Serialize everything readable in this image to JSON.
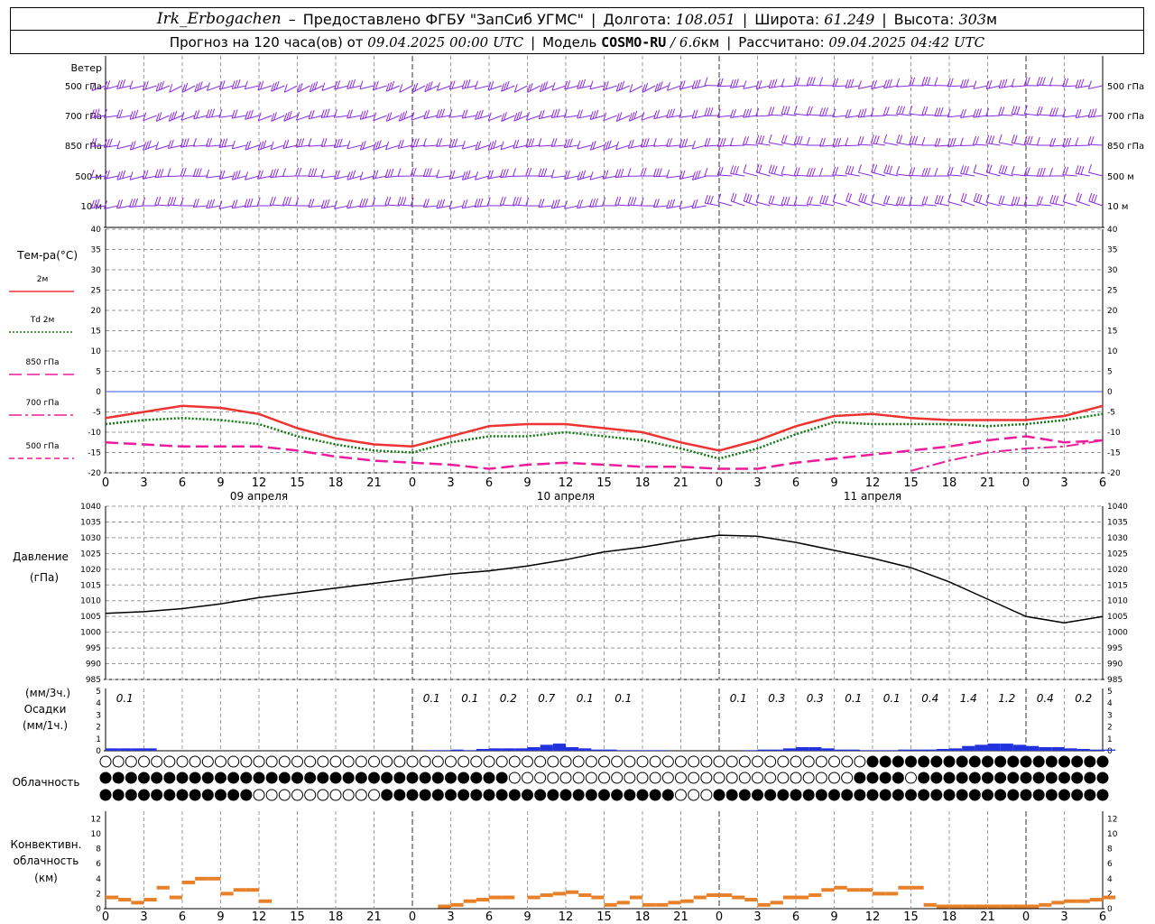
{
  "header": {
    "station": "Irk_Erbogachen",
    "dash": "–",
    "provider": "Предоставлено ФГБУ \"ЗапСиб УГМС\"",
    "lon_label": "Долгота:",
    "lon_value": "108.051",
    "lat_label": "Широта:",
    "lat_value": "61.249",
    "alt_label": "Высота:",
    "alt_value": "303",
    "alt_unit": "м",
    "forecast_label": "Прогноз на 120 часа(ов) от",
    "forecast_from": "09.04.2025 00:00 UTC",
    "model_label": "Модель",
    "model_name": "COSMO-RU",
    "model_res": "/ 6.6",
    "model_unit": "км",
    "calc_label": "Рассчитано:",
    "calc_value": "09.04.2025 04:42 UTC"
  },
  "colors": {
    "wind": "#8a2be2",
    "t2m": "#ee3333",
    "td2m": "#117711",
    "t850": "#ee1c9c",
    "t700": "#ee1c9c",
    "t500": "#ee1c9c",
    "pressure": "#000000",
    "precip": "#2233dd",
    "convective": "#e8802a",
    "zero_line": "#3355dd",
    "grid": "#9a9a9a"
  },
  "wind_panel": {
    "title": "Ветер",
    "levels": [
      "500 гПа",
      "700 гПа",
      "850 гПа",
      "500 м",
      "10 м"
    ]
  },
  "temperature_panel": {
    "title": "Тем-ра(°С)",
    "legend": [
      {
        "key": "t2m",
        "label": "2м",
        "style": "solid"
      },
      {
        "key": "td2m",
        "label": "2м",
        "prefix": "Td",
        "style": "dotted"
      },
      {
        "key": "t850",
        "label": "гПа",
        "prefix": "850",
        "style": "dash"
      },
      {
        "key": "t700",
        "label": "гПа",
        "prefix": "700",
        "style": "dashdot"
      },
      {
        "key": "t500",
        "label": "гПа",
        "prefix": "500",
        "style": "smalldash"
      }
    ],
    "y_ticks": [
      "40",
      "35",
      "30",
      "25",
      "20",
      "15",
      "10",
      "5",
      "0",
      "-5",
      "-10",
      "-15",
      "-20"
    ]
  },
  "x_axis": {
    "hour_labels": [
      "0",
      "3",
      "6",
      "9",
      "12",
      "15",
      "18",
      "21",
      "0",
      "3",
      "6",
      "9",
      "12",
      "15",
      "18",
      "21",
      "0",
      "3",
      "6",
      "9",
      "12",
      "15",
      "18",
      "21",
      "0",
      "3",
      "6"
    ],
    "day_labels": [
      "09 апреля",
      "10 апреля",
      "11 апреля"
    ]
  },
  "pressure_panel": {
    "title": "Давление",
    "unit": "(гПа)",
    "y_ticks": [
      "1040",
      "1035",
      "1030",
      "1025",
      "1020",
      "1015",
      "1010",
      "1005",
      "1000",
      "995",
      "990",
      "985"
    ]
  },
  "precip_panel": {
    "unit3h": "(мм/3ч.)",
    "title": "Осадки",
    "unit1h": "(мм/1ч.)",
    "y_ticks": [
      "5",
      "4",
      "3",
      "2",
      "1",
      "0"
    ],
    "sums": [
      {
        "h": 3,
        "v": "0.1"
      },
      {
        "h": 27,
        "v": "0.1"
      },
      {
        "h": 30,
        "v": "0.1"
      },
      {
        "h": 33,
        "v": "0.2"
      },
      {
        "h": 36,
        "v": "0.7"
      },
      {
        "h": 39,
        "v": "0.1"
      },
      {
        "h": 42,
        "v": "0.1"
      },
      {
        "h": 51,
        "v": "0.1"
      },
      {
        "h": 54,
        "v": "0.3"
      },
      {
        "h": 57,
        "v": "0.3"
      },
      {
        "h": 60,
        "v": "0.1"
      },
      {
        "h": 63,
        "v": "0.1"
      },
      {
        "h": 66,
        "v": "0.4"
      },
      {
        "h": 69,
        "v": "1.4"
      },
      {
        "h": 72,
        "v": "1.2"
      },
      {
        "h": 75,
        "v": "0.4"
      },
      {
        "h": 78,
        "v": "0.2"
      }
    ]
  },
  "cloud_panel": {
    "title": "Облачность"
  },
  "convective_panel": {
    "title1": "Конвективн.",
    "title2": "облачность",
    "unit": "(км)",
    "y_ticks": [
      "12",
      "10",
      "8",
      "6",
      "4",
      "2",
      "0"
    ]
  },
  "chart_data": [
    {
      "type": "line",
      "title": "Тем-ра(°С)",
      "ylim": [
        -20,
        40
      ],
      "x_hours": [
        0,
        3,
        6,
        9,
        12,
        15,
        18,
        21,
        24,
        27,
        30,
        33,
        36,
        39,
        42,
        45,
        48,
        51,
        54,
        57,
        60,
        63,
        66,
        69,
        72,
        75,
        78
      ],
      "series": [
        {
          "name": "2м",
          "values": [
            -6.5,
            -5,
            -3.5,
            -4,
            -5.5,
            -9,
            -11.5,
            -13,
            -13.5,
            -11,
            -8.5,
            -8,
            -8,
            -9,
            -10,
            -12.5,
            -14.5,
            -12,
            -8.5,
            -6,
            -5.5,
            -6.5,
            -7,
            -7,
            -7,
            -6,
            -3.5
          ]
        },
        {
          "name": "Td 2м",
          "values": [
            -8,
            -7,
            -6.5,
            -7,
            -8,
            -11,
            -13,
            -14.5,
            -15,
            -12.5,
            -11,
            -11,
            -10,
            -11,
            -12,
            -14,
            -16.5,
            -14,
            -10.5,
            -7.5,
            -8,
            -8,
            -8,
            -8.5,
            -8,
            -7,
            -5.5
          ]
        },
        {
          "name": "850 гПа",
          "values": [
            -12.5,
            -13,
            -13.5,
            -13.5,
            -13.5,
            -14.5,
            -16,
            -17,
            -17.5,
            -18,
            -19,
            -18,
            -17.5,
            -18,
            -18.5,
            -18.5,
            -19,
            -19,
            -17.5,
            -16.5,
            -15.5,
            -14.5,
            -13.5,
            -12,
            -11,
            -12.5,
            -12
          ]
        },
        {
          "name": "700 гПа",
          "values": [
            null,
            null,
            null,
            null,
            null,
            null,
            null,
            null,
            null,
            null,
            null,
            null,
            null,
            null,
            null,
            null,
            null,
            null,
            null,
            null,
            null,
            -19.5,
            -17,
            -15,
            -14,
            -13.5,
            -12
          ]
        },
        {
          "name": "500 гПа",
          "values": [
            null,
            null,
            null,
            null,
            null,
            null,
            null,
            null,
            null,
            null,
            null,
            null,
            null,
            null,
            null,
            null,
            null,
            null,
            null,
            null,
            null,
            null,
            null,
            null,
            null,
            null,
            null
          ]
        }
      ]
    },
    {
      "type": "line",
      "title": "Давление",
      "ylim": [
        985,
        1040
      ],
      "x_hours": [
        0,
        3,
        6,
        9,
        12,
        15,
        18,
        21,
        24,
        27,
        30,
        33,
        36,
        39,
        42,
        45,
        48,
        51,
        54,
        57,
        60,
        63,
        66,
        69,
        72,
        75,
        78
      ],
      "series": [
        {
          "name": "Давление",
          "values": [
            1006,
            1006.5,
            1007.5,
            1009,
            1011,
            1012.5,
            1014,
            1015.5,
            1017,
            1018.5,
            1019.5,
            1021,
            1023,
            1025.5,
            1027,
            1029,
            1030.8,
            1030.5,
            1028.5,
            1026,
            1023.5,
            1020.5,
            1016,
            1010.5,
            1005,
            1003,
            1005
          ]
        }
      ]
    },
    {
      "type": "bar",
      "title": "Осадки",
      "ylim": [
        0,
        5
      ],
      "x_hours": [
        1,
        2,
        3,
        4,
        5,
        6,
        26,
        27,
        28,
        29,
        30,
        31,
        32,
        33,
        34,
        35,
        36,
        37,
        38,
        39,
        40,
        41,
        42,
        43,
        44,
        51,
        52,
        53,
        54,
        55,
        56,
        57,
        58,
        59,
        60,
        61,
        62,
        63,
        64,
        65,
        66,
        67,
        68,
        69,
        70,
        71,
        72,
        73,
        74,
        75,
        76,
        77,
        78,
        79
      ],
      "values": [
        0.2,
        0.2,
        0.2,
        0.2,
        0,
        0,
        0.05,
        0.05,
        0.1,
        0.05,
        0.15,
        0.2,
        0.2,
        0.2,
        0.3,
        0.5,
        0.6,
        0.3,
        0.2,
        0.1,
        0.1,
        0.05,
        0.05,
        0.05,
        0.05,
        0.05,
        0.1,
        0.1,
        0.2,
        0.3,
        0.3,
        0.2,
        0.1,
        0.1,
        0.05,
        0.05,
        0.05,
        0.1,
        0.1,
        0.1,
        0.15,
        0.2,
        0.4,
        0.5,
        0.6,
        0.6,
        0.5,
        0.4,
        0.3,
        0.3,
        0.2,
        0.15,
        0.1,
        0.1
      ]
    },
    {
      "type": "bar",
      "title": "Конвективн. облачность",
      "ylim": [
        0,
        13
      ],
      "x_hours": [
        0,
        1,
        2,
        3,
        4,
        5,
        6,
        7,
        8,
        9,
        10,
        11,
        12,
        26,
        27,
        28,
        29,
        30,
        31,
        33,
        34,
        35,
        36,
        37,
        38,
        39,
        40,
        41,
        42,
        43,
        44,
        45,
        46,
        47,
        48,
        49,
        50,
        51,
        52,
        53,
        54,
        55,
        56,
        57,
        58,
        59,
        60,
        61,
        62,
        63,
        64,
        65,
        66,
        67,
        68,
        69,
        70,
        71,
        72,
        73,
        74,
        75,
        76,
        77,
        78
      ],
      "values": [
        1.5,
        1.2,
        0.8,
        1.2,
        2.8,
        1.5,
        3.5,
        4,
        4,
        2,
        2.5,
        2.5,
        1,
        0.3,
        0.5,
        1,
        1.2,
        1.5,
        1.5,
        1.5,
        1.8,
        2,
        2.2,
        1.8,
        1.5,
        0.5,
        0.8,
        1.5,
        0.5,
        0.5,
        0.8,
        1,
        1.5,
        1.8,
        1.8,
        1.5,
        1.2,
        0.5,
        0.8,
        1.5,
        1.5,
        1.8,
        2.5,
        2.8,
        2.5,
        2.5,
        2,
        2,
        2.8,
        2.8,
        0.5,
        0.3,
        0.3,
        0.3,
        0.3,
        0.3,
        0.3,
        0.3,
        0.3,
        0.5,
        0.8,
        1,
        1,
        1.2,
        1.5
      ]
    }
  ]
}
